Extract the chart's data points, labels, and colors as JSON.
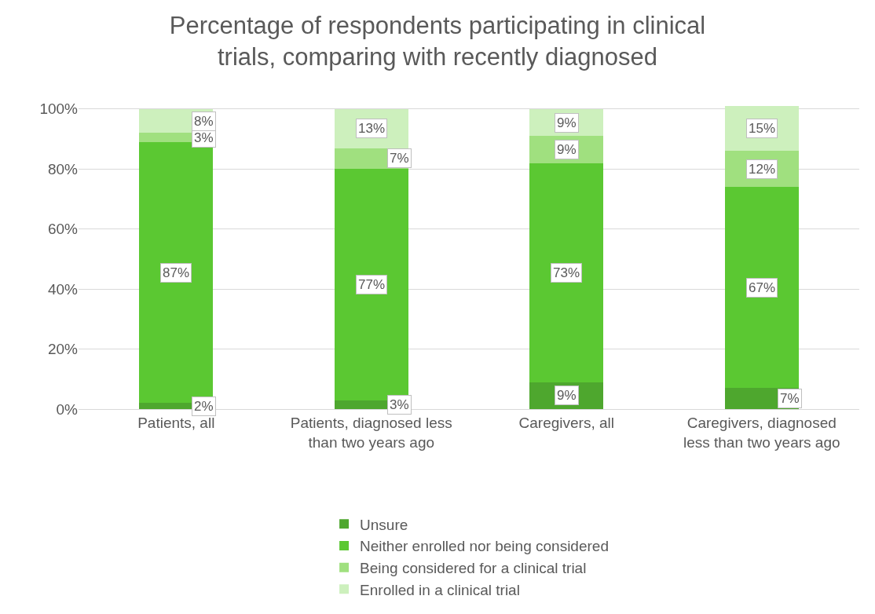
{
  "chart_data": {
    "type": "bar",
    "stacked": true,
    "title": "Percentage of respondents participating in clinical trials, comparing with recently diagnosed",
    "categories": [
      "Patients, all",
      "Patients, diagnosed less than two years ago",
      "Caregivers, all",
      "Caregivers, diagnosed less than two years ago"
    ],
    "series": [
      {
        "name": "Unsure",
        "color": "#4ea72e",
        "values": [
          2,
          3,
          9,
          7
        ],
        "value_labels": [
          "2%",
          "3%",
          "9%",
          "7%"
        ]
      },
      {
        "name": "Neither enrolled nor being considered",
        "color": "#5bc832",
        "values": [
          87,
          77,
          73,
          67
        ],
        "value_labels": [
          "87%",
          "77%",
          "73%",
          "67%"
        ]
      },
      {
        "name": "Being considered for a clinical trial",
        "color": "#a0e07f",
        "values": [
          3,
          7,
          9,
          12
        ],
        "value_labels": [
          "3%",
          "7%",
          "9%",
          "12%"
        ]
      },
      {
        "name": "Enrolled in a clinical trial",
        "color": "#cdf0bd",
        "values": [
          8,
          13,
          9,
          15
        ],
        "value_labels": [
          "8%",
          "13%",
          "9%",
          "15%"
        ]
      }
    ],
    "ylim": [
      0,
      101
    ],
    "yticks": [
      {
        "value": 0,
        "label": "0%"
      },
      {
        "value": 20,
        "label": "20%"
      },
      {
        "value": 40,
        "label": "40%"
      },
      {
        "value": 60,
        "label": "60%"
      },
      {
        "value": 80,
        "label": "80%"
      },
      {
        "value": 100,
        "label": "100%"
      }
    ],
    "grid": "y",
    "legend": "bottom"
  }
}
